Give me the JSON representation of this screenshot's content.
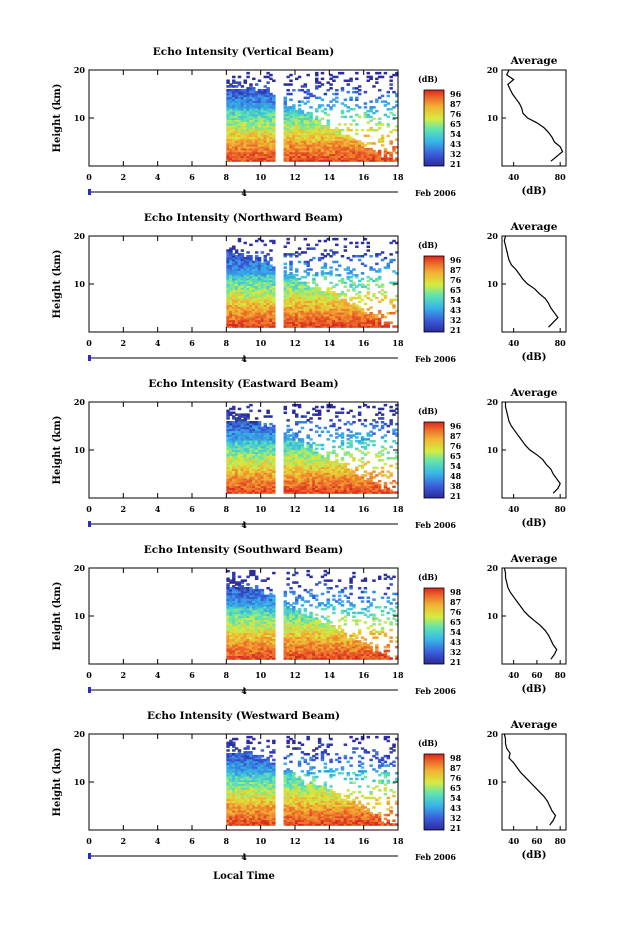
{
  "figure": {
    "xlabel": "Local Time",
    "date_label": "Feb 2006",
    "day_label": "4",
    "average_title": "Average",
    "average_xlabel": "(dB)",
    "ylabel": "Height (km)",
    "colorbar_unit": "(dB)"
  },
  "chart_data": [
    {
      "type": "heatmap",
      "title": "Echo Intensity (Vertical Beam)",
      "ylabel": "Height (km)",
      "xlim": [
        0,
        18
      ],
      "ylim": [
        0,
        20
      ],
      "xticks": [
        0,
        2,
        4,
        6,
        8,
        10,
        12,
        14,
        16,
        18
      ],
      "yticks": [
        10,
        20
      ],
      "data_x_range": [
        8,
        18
      ],
      "data_gap_x": [
        10.8,
        11.3
      ],
      "colorbar_label": "(dB)",
      "colorbar_ticks": [
        96,
        87,
        76,
        65,
        54,
        43,
        32,
        21
      ],
      "profile_top_km": [
        18.5,
        17.5,
        16.5,
        16,
        16,
        15,
        14,
        13,
        12,
        11,
        10,
        9,
        8,
        7,
        6,
        5,
        4,
        3,
        2,
        1.5
      ],
      "average_profile": {
        "title": "Average",
        "xlabel": "(dB)",
        "xticks": [
          40,
          80
        ],
        "xlim": [
          30,
          85
        ],
        "ylim": [
          0,
          20
        ],
        "yticks": [
          10,
          20
        ],
        "height": [
          20,
          19,
          18,
          17,
          16,
          15,
          14,
          13,
          12,
          11,
          10,
          9,
          8,
          7,
          6,
          5,
          4,
          3,
          2,
          1
        ],
        "values": [
          36,
          34,
          40,
          35,
          37,
          39,
          42,
          45,
          47,
          48,
          52,
          60,
          66,
          70,
          73,
          75,
          80,
          82,
          77,
          72
        ]
      }
    },
    {
      "type": "heatmap",
      "title": "Echo Intensity (Northward Beam)",
      "ylabel": "Height (km)",
      "xlim": [
        0,
        18
      ],
      "ylim": [
        0,
        20
      ],
      "xticks": [
        0,
        2,
        4,
        6,
        8,
        10,
        12,
        14,
        16,
        18
      ],
      "yticks": [
        10,
        20
      ],
      "data_x_range": [
        8,
        18
      ],
      "data_gap_x": [
        10.8,
        11.3
      ],
      "colorbar_label": "(dB)",
      "colorbar_ticks": [
        96,
        87,
        76,
        65,
        54,
        43,
        32,
        21
      ],
      "profile_top_km": [
        18,
        17,
        16,
        15.5,
        15,
        14,
        13,
        12,
        11,
        10,
        9.5,
        9,
        8,
        7,
        6,
        5,
        4,
        3,
        2,
        1.5
      ],
      "average_profile": {
        "title": "Average",
        "xlabel": "(dB)",
        "xticks": [
          40,
          80
        ],
        "xlim": [
          30,
          85
        ],
        "ylim": [
          0,
          20
        ],
        "yticks": [
          10,
          20
        ],
        "height": [
          20,
          19,
          18,
          17,
          16,
          15,
          14,
          13,
          12,
          11,
          10,
          9,
          8,
          7,
          6,
          5,
          4,
          3,
          2,
          1
        ],
        "values": [
          33,
          32,
          33,
          34,
          35,
          36,
          38,
          42,
          45,
          48,
          52,
          58,
          62,
          67,
          70,
          72,
          75,
          78,
          74,
          70
        ]
      }
    },
    {
      "type": "heatmap",
      "title": "Echo Intensity (Eastward Beam)",
      "ylabel": "Height (km)",
      "xlim": [
        0,
        18
      ],
      "ylim": [
        0,
        20
      ],
      "xticks": [
        0,
        2,
        4,
        6,
        8,
        10,
        12,
        14,
        16,
        18
      ],
      "yticks": [
        10,
        20
      ],
      "data_x_range": [
        8,
        18
      ],
      "data_gap_x": [
        10.8,
        11.3
      ],
      "colorbar_label": "(dB)",
      "colorbar_ticks": [
        96,
        87,
        76,
        65,
        54,
        48,
        38,
        21
      ],
      "profile_top_km": [
        19,
        18,
        17,
        16.5,
        15.5,
        15,
        14,
        13,
        12,
        11,
        10,
        9,
        8,
        7,
        6,
        5,
        4,
        3,
        2,
        1.5
      ],
      "average_profile": {
        "title": "Average",
        "xlabel": "(dB)",
        "xticks": [
          40,
          80
        ],
        "xlim": [
          30,
          85
        ],
        "ylim": [
          0,
          20
        ],
        "yticks": [
          10,
          20
        ],
        "height": [
          20,
          19,
          18,
          17,
          16,
          15,
          14,
          13,
          12,
          11,
          10,
          9,
          8,
          7,
          6,
          5,
          4,
          3,
          2,
          1
        ],
        "values": [
          33,
          33,
          34,
          35,
          36,
          38,
          41,
          44,
          47,
          50,
          54,
          60,
          65,
          68,
          72,
          74,
          77,
          80,
          78,
          74
        ]
      }
    },
    {
      "type": "heatmap",
      "title": "Echo Intensity (Southward Beam)",
      "ylabel": "Height (km)",
      "xlim": [
        0,
        18
      ],
      "ylim": [
        0,
        20
      ],
      "xticks": [
        0,
        2,
        4,
        6,
        8,
        10,
        12,
        14,
        16,
        18
      ],
      "yticks": [
        10,
        20
      ],
      "data_x_range": [
        8,
        18
      ],
      "data_gap_x": [
        10.8,
        11.3
      ],
      "colorbar_label": "(dB)",
      "colorbar_ticks": [
        98,
        87,
        76,
        65,
        54,
        43,
        32,
        21
      ],
      "profile_top_km": [
        18.5,
        17.5,
        16.5,
        16,
        15,
        14,
        13,
        12,
        11,
        10,
        9.5,
        9,
        8,
        7,
        6,
        5,
        4,
        3,
        2,
        1.5
      ],
      "average_profile": {
        "title": "Average",
        "xlabel": "(dB)",
        "xticks": [
          40,
          60,
          80
        ],
        "xlim": [
          30,
          85
        ],
        "ylim": [
          0,
          20
        ],
        "yticks": [
          10,
          20
        ],
        "height": [
          20,
          19,
          18,
          17,
          16,
          15,
          14,
          13,
          12,
          11,
          10,
          9,
          8,
          7,
          6,
          5,
          4,
          3,
          2,
          1
        ],
        "values": [
          32,
          33,
          33,
          34,
          35,
          37,
          40,
          43,
          46,
          49,
          53,
          58,
          63,
          67,
          70,
          72,
          74,
          77,
          75,
          72
        ]
      }
    },
    {
      "type": "heatmap",
      "title": "Echo Intensity (Westward Beam)",
      "ylabel": "Height (km)",
      "xlim": [
        0,
        18
      ],
      "ylim": [
        0,
        20
      ],
      "xticks": [
        0,
        2,
        4,
        6,
        8,
        10,
        12,
        14,
        16,
        18
      ],
      "yticks": [
        10,
        20
      ],
      "data_x_range": [
        8,
        18
      ],
      "data_gap_x": [
        10.8,
        11.3
      ],
      "colorbar_label": "(dB)",
      "colorbar_ticks": [
        98,
        87,
        76,
        65,
        54,
        43,
        32,
        21
      ],
      "profile_top_km": [
        18.5,
        17.5,
        17,
        16,
        15,
        14,
        13,
        12,
        11,
        10,
        9.5,
        9,
        8,
        7,
        6,
        5,
        4,
        3,
        2,
        1.5
      ],
      "average_profile": {
        "title": "Average",
        "xlabel": "(dB)",
        "xticks": [
          40,
          60,
          80
        ],
        "xlim": [
          30,
          85
        ],
        "ylim": [
          0,
          20
        ],
        "yticks": [
          10,
          20
        ],
        "height": [
          20,
          19,
          18,
          17,
          16,
          15,
          14,
          13,
          12,
          11,
          10,
          9,
          8,
          7,
          6,
          5,
          4,
          3,
          2,
          1
        ],
        "values": [
          32,
          33,
          33,
          34,
          37,
          36,
          40,
          43,
          46,
          50,
          54,
          58,
          62,
          66,
          69,
          71,
          73,
          76,
          74,
          71
        ]
      }
    }
  ]
}
